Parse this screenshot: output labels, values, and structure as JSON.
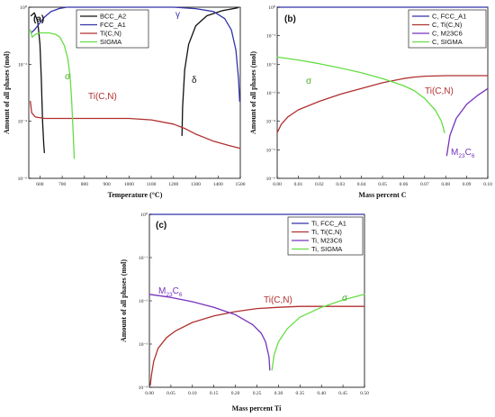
{
  "chart_data": [
    {
      "panel": "(a)",
      "type": "line",
      "xlabel": "Temperature (°C)",
      "ylabel": "Amount of all phases (mol)",
      "xlim": [
        550,
        1500
      ],
      "ylim_log10": [
        -6,
        0
      ],
      "yscale": "log",
      "x_ticks": [
        "600",
        "700",
        "800",
        "900",
        "1000",
        "1100",
        "1200",
        "1300",
        "1400",
        "1500"
      ],
      "y_ticks": [
        "10^0",
        "10^-2",
        "10^-4",
        "10^-6"
      ],
      "legend": {
        "position": "top-left",
        "entries": [
          "BCC_A2",
          "FCC_A1",
          "Ti(C,N)",
          "SIGMA"
        ]
      },
      "series": [
        {
          "name": "BCC_A2",
          "color": "#111111",
          "points": [
            [
              560,
              -0.3
            ],
            [
              575,
              -0.2
            ],
            [
              590,
              -0.5
            ],
            [
              600,
              -1.3
            ],
            [
              606,
              -2.5
            ],
            [
              612,
              -4.0
            ],
            [
              617,
              -4.8
            ],
            [
              620,
              -5.1
            ]
          ]
        },
        {
          "name": "BCC_A2",
          "color": "#111111",
          "points": [
            [
              1238,
              -4.5
            ],
            [
              1241,
              -3.5
            ],
            [
              1250,
              -2.2
            ],
            [
              1268,
              -1.3
            ],
            [
              1300,
              -0.65
            ],
            [
              1350,
              -0.3
            ],
            [
              1420,
              -0.12
            ],
            [
              1490,
              -0.02
            ]
          ]
        },
        {
          "name": "FCC_A1",
          "color": "#3333aa",
          "points": [
            [
              560,
              -0.9
            ],
            [
              575,
              -0.8
            ],
            [
              595,
              -0.6
            ],
            [
              620,
              -0.35
            ],
            [
              650,
              -0.15
            ],
            [
              690,
              -0.04
            ],
            [
              720,
              0
            ],
            [
              1200,
              0
            ],
            [
              1300,
              -0.05
            ],
            [
              1380,
              -0.15
            ],
            [
              1430,
              -0.4
            ],
            [
              1460,
              -0.8
            ],
            [
              1480,
              -1.5
            ],
            [
              1492,
              -2.5
            ],
            [
              1497,
              -3.3
            ]
          ]
        },
        {
          "name": "Ti(C,N)",
          "color": "#b03030",
          "points": [
            [
              557,
              -3.3
            ],
            [
              563,
              -3.7
            ],
            [
              580,
              -3.85
            ],
            [
              620,
              -3.9
            ],
            [
              800,
              -3.9
            ],
            [
              1000,
              -3.9
            ],
            [
              1100,
              -3.95
            ],
            [
              1200,
              -4.1
            ],
            [
              1250,
              -4.25
            ],
            [
              1300,
              -4.45
            ],
            [
              1380,
              -4.7
            ],
            [
              1450,
              -4.85
            ],
            [
              1500,
              -4.95
            ]
          ]
        },
        {
          "name": "SIGMA",
          "color": "#66dd44",
          "points": [
            [
              557,
              -0.8
            ],
            [
              565,
              -1.05
            ],
            [
              580,
              -0.95
            ],
            [
              600,
              -0.9
            ],
            [
              640,
              -0.9
            ],
            [
              670,
              -0.95
            ],
            [
              690,
              -1.05
            ],
            [
              710,
              -1.35
            ],
            [
              725,
              -1.8
            ],
            [
              735,
              -2.4
            ],
            [
              742,
              -3.2
            ],
            [
              748,
              -4.2
            ],
            [
              752,
              -4.9
            ],
            [
              754,
              -5.3
            ]
          ]
        }
      ],
      "annotations": [
        {
          "text": "γ",
          "near": "top",
          "color": "#3333aa"
        },
        {
          "text": "σ",
          "near": "SIGMA curve",
          "color": "#44aa22"
        },
        {
          "text": "δ",
          "near": "right BCC curve",
          "color": "#111111"
        },
        {
          "text": "Ti(C,N)",
          "near": "middle line",
          "color": "#b03030"
        }
      ]
    },
    {
      "panel": "(b)",
      "type": "line",
      "xlabel": "Mass percent C",
      "ylabel": "Amount of all phases (mol)",
      "xlim": [
        0.0,
        0.1
      ],
      "ylim_log10": [
        -6,
        0
      ],
      "yscale": "log",
      "x_ticks": [
        "0.00",
        "0.01",
        "0.02",
        "0.03",
        "0.04",
        "0.05",
        "0.06",
        "0.07",
        "0.08",
        "0.09",
        "0.10"
      ],
      "y_ticks": [
        "10^0",
        "10^-1",
        "10^-2",
        "10^-3",
        "10^-4",
        "10^-5",
        "10^-6"
      ],
      "legend": {
        "position": "top-right",
        "entries": [
          "C, FCC_A1",
          "C, Ti(C,N)",
          "C, M23C6",
          "C, SIGMA"
        ]
      },
      "series": [
        {
          "name": "C, FCC_A1",
          "color": "#3333aa",
          "points": [
            [
              0.0,
              0
            ],
            [
              0.1,
              0
            ]
          ]
        },
        {
          "name": "C, Ti(C,N)",
          "color": "#b03030",
          "points": [
            [
              0.0,
              -4.4
            ],
            [
              0.002,
              -4.1
            ],
            [
              0.005,
              -3.85
            ],
            [
              0.01,
              -3.6
            ],
            [
              0.02,
              -3.3
            ],
            [
              0.03,
              -3.05
            ],
            [
              0.04,
              -2.85
            ],
            [
              0.05,
              -2.65
            ],
            [
              0.06,
              -2.5
            ],
            [
              0.065,
              -2.45
            ],
            [
              0.07,
              -2.42
            ],
            [
              0.08,
              -2.4
            ],
            [
              0.1,
              -2.4
            ]
          ]
        },
        {
          "name": "C, M23C6",
          "color": "#7733bb",
          "points": [
            [
              0.0805,
              -5.2
            ],
            [
              0.082,
              -4.5
            ],
            [
              0.085,
              -3.9
            ],
            [
              0.09,
              -3.4
            ],
            [
              0.095,
              -3.1
            ],
            [
              0.1,
              -2.85
            ]
          ]
        },
        {
          "name": "C, SIGMA",
          "color": "#66dd44",
          "points": [
            [
              0.0,
              -1.75
            ],
            [
              0.01,
              -1.85
            ],
            [
              0.02,
              -1.98
            ],
            [
              0.03,
              -2.13
            ],
            [
              0.04,
              -2.3
            ],
            [
              0.05,
              -2.5
            ],
            [
              0.06,
              -2.75
            ],
            [
              0.065,
              -2.92
            ],
            [
              0.07,
              -3.2
            ],
            [
              0.075,
              -3.6
            ],
            [
              0.078,
              -4.0
            ],
            [
              0.0795,
              -4.4
            ]
          ]
        }
      ],
      "annotations": [
        {
          "text": "σ",
          "near": "SIGMA curve",
          "color": "#44aa22"
        },
        {
          "text": "Ti(C,N)",
          "near": "Ti(C,N) curve",
          "color": "#b03030"
        },
        {
          "text": "M",
          "sub": "23",
          "text2": "C",
          "sub2": "6",
          "near": "M23C6 curve",
          "color": "#7733bb"
        }
      ]
    },
    {
      "panel": "(c)",
      "type": "line",
      "xlabel": "Mass percent Ti",
      "ylabel": "Amount of all phases (mol)",
      "xlim": [
        0.0,
        0.5
      ],
      "ylim_log10": [
        -4,
        0
      ],
      "yscale": "log",
      "x_ticks": [
        "0.00",
        "0.05",
        "0.10",
        "0.15",
        "0.20",
        "0.25",
        "0.30",
        "0.35",
        "0.40",
        "0.45",
        "0.50"
      ],
      "y_ticks": [
        "10^0",
        "10^-1",
        "10^-2",
        "10^-3",
        "10^-4"
      ],
      "legend": {
        "position": "top-right",
        "entries": [
          "Ti, FCC_A1",
          "Ti, Ti(C,N)",
          "Ti, M23C6",
          "Ti, SIGMA"
        ]
      },
      "series": [
        {
          "name": "Ti, FCC_A1",
          "color": "#3333aa",
          "points": [
            [
              0.0,
              0
            ],
            [
              0.5,
              0
            ]
          ]
        },
        {
          "name": "Ti, Ti(C,N)",
          "color": "#b03030",
          "points": [
            [
              0.002,
              -3.95
            ],
            [
              0.005,
              -3.7
            ],
            [
              0.01,
              -3.4
            ],
            [
              0.02,
              -3.1
            ],
            [
              0.04,
              -2.85
            ],
            [
              0.06,
              -2.7
            ],
            [
              0.1,
              -2.5
            ],
            [
              0.15,
              -2.35
            ],
            [
              0.2,
              -2.25
            ],
            [
              0.25,
              -2.18
            ],
            [
              0.3,
              -2.15
            ],
            [
              0.35,
              -2.13
            ],
            [
              0.4,
              -2.13
            ],
            [
              0.5,
              -2.13
            ]
          ]
        },
        {
          "name": "Ti, M23C6",
          "color": "#7733bb",
          "points": [
            [
              0.0,
              -1.85
            ],
            [
              0.05,
              -1.92
            ],
            [
              0.1,
              -2.02
            ],
            [
              0.15,
              -2.15
            ],
            [
              0.2,
              -2.32
            ],
            [
              0.24,
              -2.55
            ],
            [
              0.26,
              -2.75
            ],
            [
              0.27,
              -2.95
            ],
            [
              0.278,
              -3.3
            ],
            [
              0.28,
              -3.6
            ]
          ]
        },
        {
          "name": "Ti, SIGMA",
          "color": "#66dd44",
          "points": [
            [
              0.285,
              -3.6
            ],
            [
              0.29,
              -3.25
            ],
            [
              0.3,
              -2.95
            ],
            [
              0.32,
              -2.65
            ],
            [
              0.35,
              -2.38
            ],
            [
              0.4,
              -2.15
            ],
            [
              0.45,
              -1.98
            ],
            [
              0.5,
              -1.85
            ]
          ]
        }
      ],
      "annotations": [
        {
          "text": "M",
          "sub": "23",
          "text2": "C",
          "sub2": "6",
          "near": "M23C6 curve",
          "color": "#7733bb"
        },
        {
          "text": "Ti(C,N)",
          "near": "Ti(C,N) curve",
          "color": "#b03030"
        },
        {
          "text": "σ",
          "near": "SIGMA curve",
          "color": "#44aa22"
        }
      ]
    }
  ]
}
